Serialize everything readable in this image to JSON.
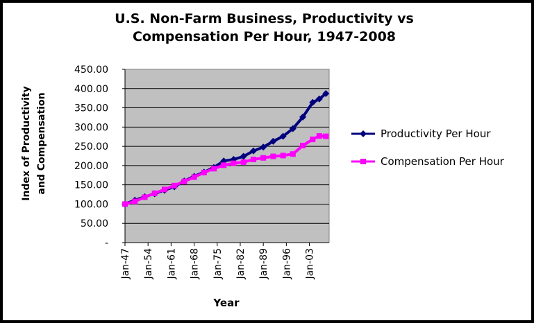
{
  "chart_data": {
    "type": "line",
    "title_lines": [
      "U.S. Non-Farm Business, Productivity vs",
      "Compensation Per Hour, 1947-2008"
    ],
    "ylabel_lines": [
      "Index of Productivity",
      "and Compensation"
    ],
    "xlabel": "Year",
    "ylim": [
      0,
      450
    ],
    "yticks": [
      0,
      50,
      100,
      150,
      200,
      250,
      300,
      350,
      400,
      450
    ],
    "ytick_labels": [
      "-",
      "50.00",
      "100.00",
      "150.00",
      "200.00",
      "250.00",
      "300.00",
      "350.00",
      "400.00",
      "450.00"
    ],
    "xlim": [
      1947,
      2009
    ],
    "xticks": [
      1947,
      1954,
      1961,
      1968,
      1975,
      1982,
      1989,
      1996,
      2003
    ],
    "xtick_labels": [
      "Jan-47",
      "Jan-54",
      "Jan-61",
      "Jan-68",
      "Jan-75",
      "Jan-82",
      "Jan-89",
      "Jan-96",
      "Jan-03"
    ],
    "grid": {
      "horizontal": true,
      "vertical": false
    },
    "legend_position": "right",
    "x": [
      1947,
      1950,
      1953,
      1956,
      1959,
      1962,
      1965,
      1968,
      1971,
      1974,
      1977,
      1980,
      1983,
      1986,
      1989,
      1992,
      1995,
      1998,
      2001,
      2004,
      2006,
      2008
    ],
    "series": [
      {
        "name": "Productivity Per Hour",
        "color": "#000080",
        "values": [
          100,
          110,
          119,
          127,
          136,
          145,
          160,
          172,
          183,
          195,
          212,
          216,
          224,
          238,
          248,
          263,
          276,
          296,
          326,
          364,
          373,
          387
        ]
      },
      {
        "name": "Compensation Per Hour",
        "color": "#FF00FF",
        "values": [
          100,
          107,
          118,
          128,
          138,
          148,
          159,
          170,
          182,
          192,
          201,
          206,
          209,
          216,
          220,
          224,
          226,
          230,
          252,
          268,
          277,
          276
        ]
      }
    ]
  }
}
